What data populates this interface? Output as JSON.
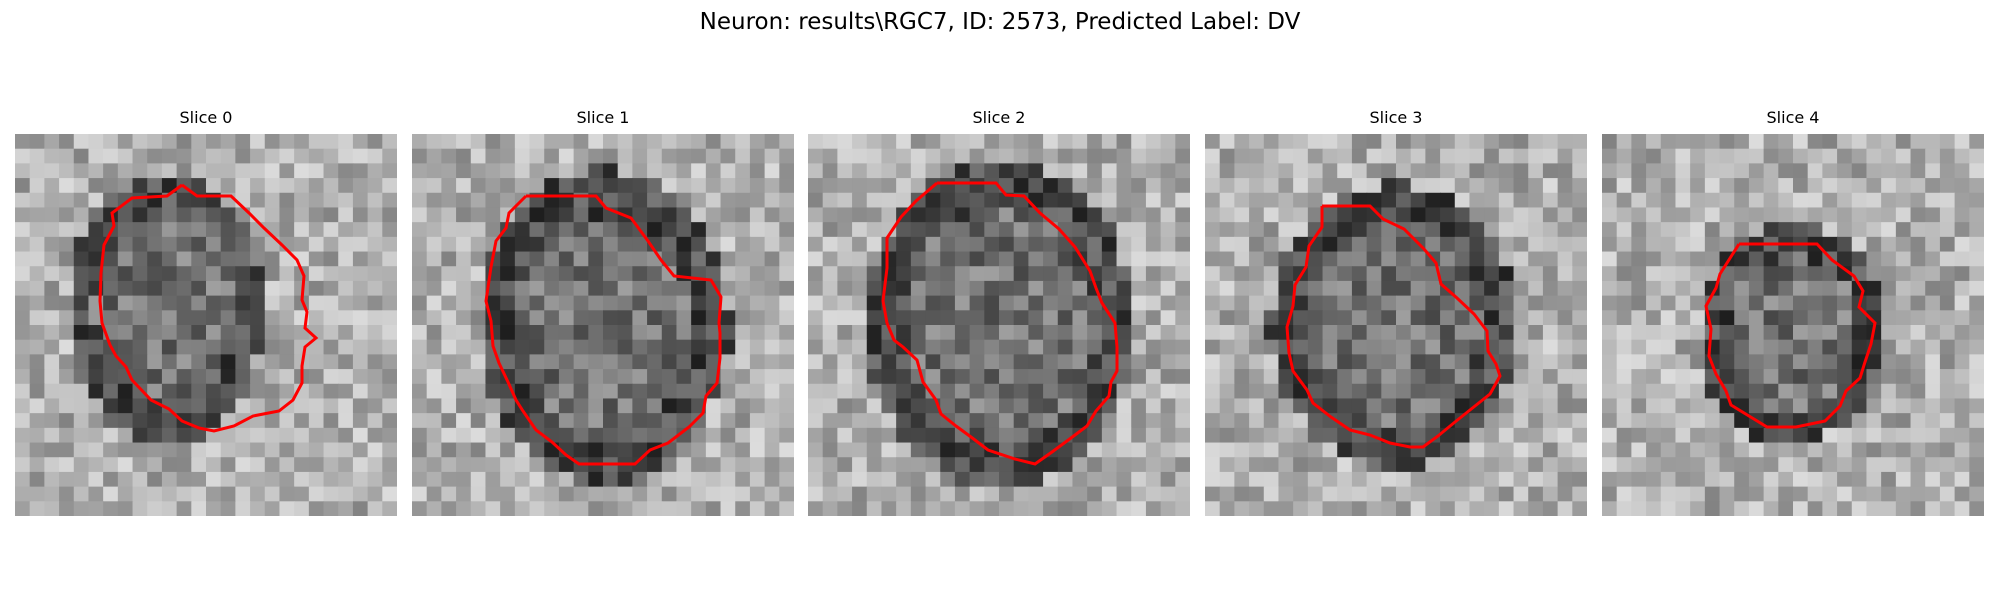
{
  "figure": {
    "title": "Neuron: results\\RGC7, ID: 2573, Predicted Label: DV"
  },
  "panels": [
    {
      "title": "Slice 0"
    },
    {
      "title": "Slice 1"
    },
    {
      "title": "Slice 2"
    },
    {
      "title": "Slice 3"
    },
    {
      "title": "Slice 4"
    }
  ],
  "colors": {
    "contour": "#ff0000",
    "background": "#ffffff"
  }
}
